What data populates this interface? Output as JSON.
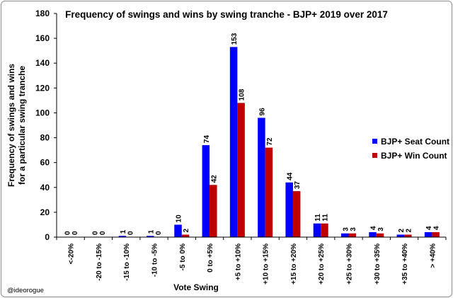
{
  "chart_data": {
    "type": "bar",
    "title": "Frequency of swings and wins by swing tranche - BJP+ 2019 over 2017",
    "xlabel": "Vote Swing",
    "ylabel_lines": [
      "Frequency of swings and wins",
      "for a particular swing tranche"
    ],
    "ylim": [
      0,
      180
    ],
    "yticks": [
      0,
      20,
      40,
      60,
      80,
      100,
      120,
      140,
      160,
      180
    ],
    "grid": false,
    "legend_position": "right",
    "categories": [
      "<-20%",
      "-20 to -15%",
      "-15 to -10%",
      "-10 to -5%",
      "-5 to 0%",
      "0 to +5%",
      "+5 to +10%",
      "+10 to +15%",
      "+15 to +20%",
      "+20 to +25%",
      "+25 to +30%",
      "+30 to +35%",
      "+35 to +40%",
      "> +40%"
    ],
    "series": [
      {
        "name": "BJP+ Seat Count",
        "color": "#0000ff",
        "values": [
          0,
          0,
          1,
          1,
          10,
          74,
          153,
          96,
          44,
          11,
          3,
          4,
          2,
          4
        ]
      },
      {
        "name": "BJP+ Win Count",
        "color": "#c00000",
        "values": [
          0,
          0,
          0,
          0,
          2,
          42,
          108,
          72,
          37,
          11,
          3,
          3,
          2,
          4
        ]
      }
    ]
  },
  "credit": "@ideorogue"
}
